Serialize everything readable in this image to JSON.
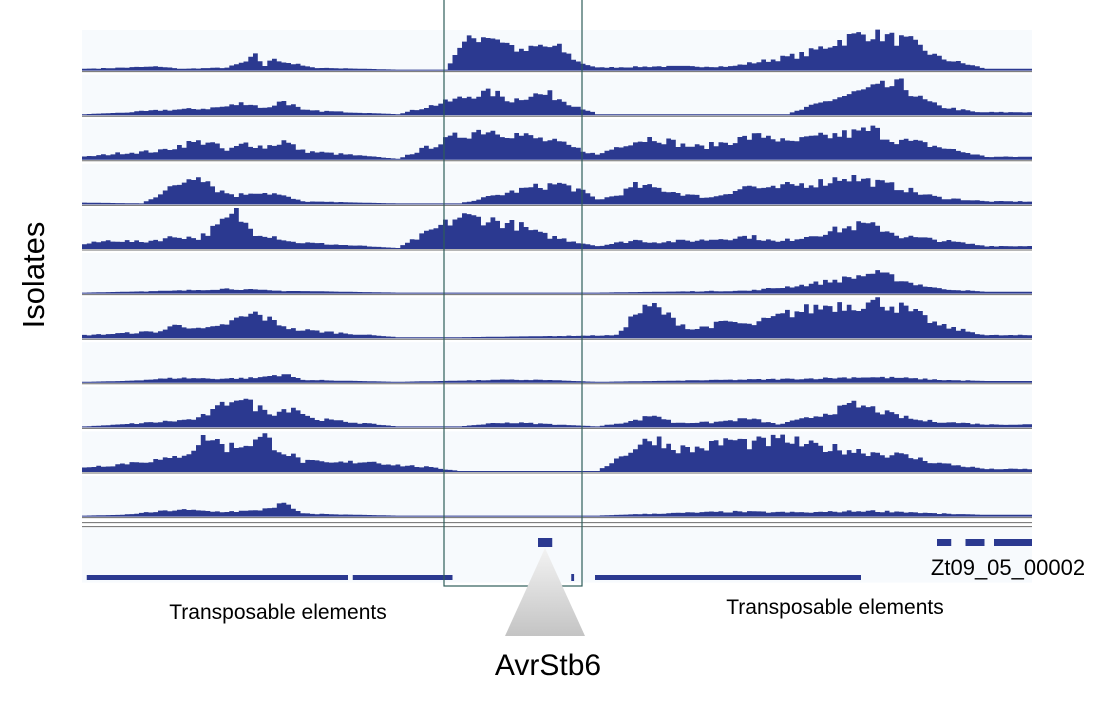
{
  "figure": {
    "y_axis_label": "Isolates",
    "gene_label": "AvrStb6",
    "left_annotation": "Transposable elements",
    "right_annotation": "Transposable elements",
    "gene_id": "Zt09_05_00002"
  },
  "colors": {
    "coverage": "#2b3990",
    "track_bg": "#f7fafd",
    "highlight_box": "#2f5d5a",
    "separator": "#6d6d6d",
    "triangle_top": "#f3f3f3",
    "triangle_bottom": "#c4c4c4"
  },
  "chart_data": {
    "type": "area",
    "description_axis": "genomic position (unitless, 0-1000 across locus)",
    "xlim": [
      0,
      1000
    ],
    "ylim": [
      0,
      1
    ],
    "series": [
      {
        "points": [
          [
            0,
            0.02
          ],
          [
            40,
            0.05
          ],
          [
            80,
            0.08
          ],
          [
            100,
            0.02
          ],
          [
            150,
            0.05
          ],
          [
            170,
            0.2
          ],
          [
            180,
            0.35
          ],
          [
            190,
            0.1
          ],
          [
            200,
            0.3
          ],
          [
            210,
            0.2
          ],
          [
            220,
            0.15
          ],
          [
            240,
            0.05
          ],
          [
            330,
            0
          ],
          [
            380,
            0
          ],
          [
            395,
            0.6
          ],
          [
            410,
            0.8
          ],
          [
            425,
            0.9
          ],
          [
            440,
            0.75
          ],
          [
            460,
            0.45
          ],
          [
            480,
            0.6
          ],
          [
            500,
            0.55
          ],
          [
            520,
            0.2
          ],
          [
            540,
            0.05
          ],
          [
            600,
            0.08
          ],
          [
            680,
            0.08
          ],
          [
            760,
            0.4
          ],
          [
            790,
            0.7
          ],
          [
            810,
            0.85
          ],
          [
            830,
            0.95
          ],
          [
            850,
            0.8
          ],
          [
            870,
            0.7
          ],
          [
            900,
            0.3
          ],
          [
            950,
            0.02
          ]
        ]
      },
      {
        "points": [
          [
            0,
            0
          ],
          [
            40,
            0.04
          ],
          [
            80,
            0.1
          ],
          [
            130,
            0.15
          ],
          [
            150,
            0.2
          ],
          [
            170,
            0.3
          ],
          [
            190,
            0.15
          ],
          [
            210,
            0.35
          ],
          [
            230,
            0.1
          ],
          [
            330,
            0
          ],
          [
            395,
            0.4
          ],
          [
            410,
            0.5
          ],
          [
            430,
            0.55
          ],
          [
            450,
            0.35
          ],
          [
            470,
            0.5
          ],
          [
            490,
            0.5
          ],
          [
            510,
            0.3
          ],
          [
            540,
            0
          ],
          [
            600,
            0
          ],
          [
            740,
            0
          ],
          [
            790,
            0.4
          ],
          [
            820,
            0.6
          ],
          [
            840,
            0.7
          ],
          [
            860,
            0.75
          ],
          [
            880,
            0.4
          ],
          [
            900,
            0.2
          ],
          [
            940,
            0.05
          ]
        ]
      },
      {
        "points": [
          [
            0,
            0.05
          ],
          [
            40,
            0.15
          ],
          [
            80,
            0.2
          ],
          [
            110,
            0.4
          ],
          [
            130,
            0.45
          ],
          [
            150,
            0.2
          ],
          [
            170,
            0.4
          ],
          [
            190,
            0.3
          ],
          [
            210,
            0.45
          ],
          [
            230,
            0.2
          ],
          [
            330,
            0
          ],
          [
            395,
            0.6
          ],
          [
            420,
            0.75
          ],
          [
            440,
            0.7
          ],
          [
            460,
            0.6
          ],
          [
            480,
            0.5
          ],
          [
            500,
            0.4
          ],
          [
            540,
            0.1
          ],
          [
            570,
            0.4
          ],
          [
            600,
            0.55
          ],
          [
            630,
            0.35
          ],
          [
            650,
            0.3
          ],
          [
            680,
            0.45
          ],
          [
            700,
            0.55
          ],
          [
            720,
            0.6
          ],
          [
            740,
            0.4
          ],
          [
            760,
            0.5
          ],
          [
            790,
            0.6
          ],
          [
            810,
            0.65
          ],
          [
            830,
            0.75
          ],
          [
            850,
            0.5
          ],
          [
            880,
            0.4
          ],
          [
            920,
            0.2
          ],
          [
            950,
            0.05
          ]
        ]
      },
      {
        "points": [
          [
            0,
            0.02
          ],
          [
            60,
            0
          ],
          [
            100,
            0.5
          ],
          [
            120,
            0.8
          ],
          [
            140,
            0.35
          ],
          [
            160,
            0.2
          ],
          [
            180,
            0.3
          ],
          [
            200,
            0.25
          ],
          [
            230,
            0.05
          ],
          [
            330,
            0
          ],
          [
            395,
            0
          ],
          [
            470,
            0.4
          ],
          [
            500,
            0.5
          ],
          [
            520,
            0.35
          ],
          [
            540,
            0.1
          ],
          [
            560,
            0.2
          ],
          [
            580,
            0.45
          ],
          [
            600,
            0.4
          ],
          [
            620,
            0.3
          ],
          [
            640,
            0.2
          ],
          [
            660,
            0.15
          ],
          [
            680,
            0.3
          ],
          [
            700,
            0.45
          ],
          [
            720,
            0.35
          ],
          [
            740,
            0.45
          ],
          [
            760,
            0.5
          ],
          [
            780,
            0.55
          ],
          [
            800,
            0.7
          ],
          [
            820,
            0.6
          ],
          [
            840,
            0.5
          ],
          [
            860,
            0.4
          ],
          [
            880,
            0.25
          ],
          [
            900,
            0.15
          ],
          [
            950,
            0.05
          ]
        ]
      },
      {
        "points": [
          [
            0,
            0.1
          ],
          [
            30,
            0.2
          ],
          [
            60,
            0.15
          ],
          [
            100,
            0.3
          ],
          [
            120,
            0.25
          ],
          [
            140,
            0.55
          ],
          [
            160,
            0.9
          ],
          [
            170,
            0.6
          ],
          [
            180,
            0.4
          ],
          [
            200,
            0.3
          ],
          [
            220,
            0.15
          ],
          [
            330,
            0
          ],
          [
            395,
            0.8
          ],
          [
            420,
            0.75
          ],
          [
            440,
            0.65
          ],
          [
            460,
            0.55
          ],
          [
            480,
            0.35
          ],
          [
            500,
            0.25
          ],
          [
            540,
            0.05
          ],
          [
            580,
            0.2
          ],
          [
            600,
            0.15
          ],
          [
            650,
            0.2
          ],
          [
            700,
            0.3
          ],
          [
            730,
            0.15
          ],
          [
            760,
            0.3
          ],
          [
            790,
            0.45
          ],
          [
            820,
            0.6
          ],
          [
            840,
            0.5
          ],
          [
            860,
            0.3
          ],
          [
            900,
            0.2
          ],
          [
            950,
            0.05
          ]
        ]
      },
      {
        "points": [
          [
            0,
            0
          ],
          [
            100,
            0.05
          ],
          [
            150,
            0.1
          ],
          [
            200,
            0.05
          ],
          [
            330,
            0
          ],
          [
            395,
            0
          ],
          [
            540,
            0
          ],
          [
            600,
            0.02
          ],
          [
            700,
            0.05
          ],
          [
            760,
            0.2
          ],
          [
            800,
            0.35
          ],
          [
            830,
            0.5
          ],
          [
            850,
            0.4
          ],
          [
            870,
            0.25
          ],
          [
            900,
            0.1
          ],
          [
            950,
            0.02
          ]
        ]
      },
      {
        "points": [
          [
            0,
            0.05
          ],
          [
            40,
            0.1
          ],
          [
            80,
            0.15
          ],
          [
            100,
            0.35
          ],
          [
            120,
            0.2
          ],
          [
            140,
            0.25
          ],
          [
            160,
            0.45
          ],
          [
            180,
            0.6
          ],
          [
            200,
            0.4
          ],
          [
            220,
            0.2
          ],
          [
            330,
            0
          ],
          [
            395,
            0
          ],
          [
            560,
            0.05
          ],
          [
            580,
            0.6
          ],
          [
            600,
            0.8
          ],
          [
            620,
            0.45
          ],
          [
            640,
            0.2
          ],
          [
            660,
            0.3
          ],
          [
            680,
            0.4
          ],
          [
            700,
            0.3
          ],
          [
            720,
            0.45
          ],
          [
            740,
            0.6
          ],
          [
            760,
            0.7
          ],
          [
            780,
            0.8
          ],
          [
            800,
            0.85
          ],
          [
            820,
            0.85
          ],
          [
            840,
            0.9
          ],
          [
            860,
            0.75
          ],
          [
            880,
            0.55
          ],
          [
            900,
            0.3
          ],
          [
            950,
            0.05
          ]
        ]
      },
      {
        "points": [
          [
            0,
            0
          ],
          [
            40,
            0.02
          ],
          [
            100,
            0.1
          ],
          [
            140,
            0.08
          ],
          [
            180,
            0.1
          ],
          [
            210,
            0.2
          ],
          [
            230,
            0.05
          ],
          [
            330,
            0
          ],
          [
            440,
            0.05
          ],
          [
            480,
            0.05
          ],
          [
            540,
            0
          ],
          [
            600,
            0.02
          ],
          [
            680,
            0.05
          ],
          [
            760,
            0.08
          ],
          [
            820,
            0.12
          ],
          [
            860,
            0.1
          ],
          [
            900,
            0.05
          ],
          [
            950,
            0.02
          ]
        ]
      },
      {
        "points": [
          [
            0,
            0
          ],
          [
            40,
            0.05
          ],
          [
            100,
            0.15
          ],
          [
            120,
            0.2
          ],
          [
            140,
            0.45
          ],
          [
            160,
            0.8
          ],
          [
            180,
            0.5
          ],
          [
            200,
            0.35
          ],
          [
            220,
            0.5
          ],
          [
            240,
            0.2
          ],
          [
            330,
            0
          ],
          [
            395,
            0
          ],
          [
            440,
            0.1
          ],
          [
            470,
            0.08
          ],
          [
            540,
            0
          ],
          [
            580,
            0.15
          ],
          [
            600,
            0.3
          ],
          [
            620,
            0.1
          ],
          [
            660,
            0.1
          ],
          [
            700,
            0.2
          ],
          [
            730,
            0.05
          ],
          [
            760,
            0.2
          ],
          [
            790,
            0.4
          ],
          [
            810,
            0.55
          ],
          [
            830,
            0.45
          ],
          [
            850,
            0.3
          ],
          [
            880,
            0.15
          ],
          [
            950,
            0.05
          ]
        ]
      },
      {
        "points": [
          [
            0,
            0.1
          ],
          [
            30,
            0.15
          ],
          [
            60,
            0.25
          ],
          [
            90,
            0.3
          ],
          [
            110,
            0.5
          ],
          [
            130,
            0.9
          ],
          [
            150,
            0.6
          ],
          [
            170,
            0.7
          ],
          [
            190,
            0.85
          ],
          [
            210,
            0.5
          ],
          [
            230,
            0.25
          ],
          [
            260,
            0.2
          ],
          [
            300,
            0.25
          ],
          [
            330,
            0.15
          ],
          [
            360,
            0.1
          ],
          [
            395,
            0
          ],
          [
            540,
            0
          ],
          [
            560,
            0.3
          ],
          [
            580,
            0.6
          ],
          [
            600,
            0.85
          ],
          [
            620,
            0.6
          ],
          [
            640,
            0.55
          ],
          [
            660,
            0.65
          ],
          [
            680,
            0.8
          ],
          [
            700,
            0.7
          ],
          [
            720,
            0.75
          ],
          [
            740,
            0.8
          ],
          [
            760,
            0.65
          ],
          [
            780,
            0.6
          ],
          [
            800,
            0.55
          ],
          [
            820,
            0.5
          ],
          [
            840,
            0.45
          ],
          [
            860,
            0.4
          ],
          [
            880,
            0.3
          ],
          [
            900,
            0.2
          ],
          [
            950,
            0.05
          ]
        ]
      },
      {
        "points": [
          [
            0,
            0
          ],
          [
            40,
            0.02
          ],
          [
            100,
            0.15
          ],
          [
            140,
            0.1
          ],
          [
            180,
            0.12
          ],
          [
            210,
            0.3
          ],
          [
            230,
            0.05
          ],
          [
            330,
            0
          ],
          [
            540,
            0
          ],
          [
            600,
            0.05
          ],
          [
            680,
            0.1
          ],
          [
            760,
            0.08
          ],
          [
            820,
            0.12
          ],
          [
            860,
            0.1
          ],
          [
            900,
            0.05
          ],
          [
            950,
            0.02
          ]
        ]
      }
    ],
    "highlight_region": {
      "x_start": 382,
      "x_end": 537
    }
  },
  "gene_track": {
    "left_te_segments": [
      [
        5,
        280
      ],
      [
        285,
        390
      ]
    ],
    "right_te_segments": [
      [
        540,
        820
      ]
    ],
    "gene_block": [
      480,
      495
    ],
    "right_gene_blocks": [
      [
        900,
        915
      ],
      [
        930,
        950
      ],
      [
        960,
        1000
      ]
    ]
  }
}
